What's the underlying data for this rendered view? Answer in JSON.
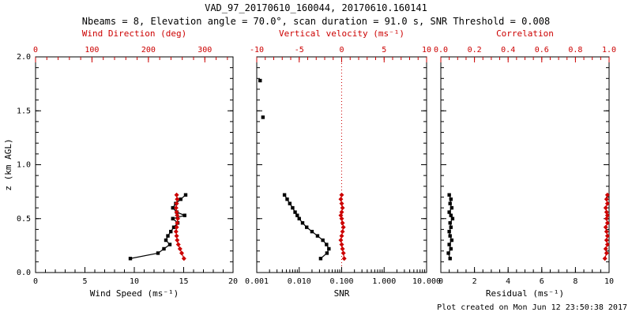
{
  "header": {
    "title": "VAD_97_20170610_160044, 20170610.160141",
    "subtitle": "Nbeams = 8, Elevation angle = 70.0°, scan duration = 91.0 s, SNR Threshold = 0.008"
  },
  "footer": {
    "created": "Plot created on Mon Jun 12 23:50:38 2017"
  },
  "colors": {
    "axis": "#000000",
    "accent": "#cc0000"
  },
  "chart_data": [
    {
      "type": "line",
      "xlabel": "Wind Speed (ms⁻¹)",
      "xlim": [
        0,
        20
      ],
      "xticks": [
        0,
        5,
        10,
        15,
        20
      ],
      "xtick_labels": [
        "0",
        "5",
        "10",
        "15",
        "20"
      ],
      "xminor": 5,
      "top_label": "Wind Direction (deg)",
      "top_lim": [
        0,
        350
      ],
      "top_ticks": [
        0,
        100,
        200,
        300
      ],
      "top_tick_labels": [
        "0",
        "100",
        "200",
        "300"
      ],
      "top_minor": 5,
      "ylabel": "z (km AGL)",
      "ylim": [
        0,
        2
      ],
      "yticks": [
        0,
        0.5,
        1,
        1.5,
        2
      ],
      "ytick_labels": [
        "0.0",
        "0.5",
        "1.0",
        "1.5",
        "2.0"
      ],
      "yminor": 5,
      "series": [
        {
          "name": "wind_speed",
          "axis": "bottom",
          "color": "#000000",
          "marker": "square",
          "line": true,
          "z": [
            0.13,
            0.18,
            0.22,
            0.26,
            0.3,
            0.34,
            0.38,
            0.42,
            0.46,
            0.5,
            0.53,
            0.56,
            0.6,
            0.64,
            0.68,
            0.72
          ],
          "v": [
            9.6,
            12.4,
            13.0,
            13.6,
            13.2,
            13.4,
            13.7,
            14.0,
            14.4,
            13.9,
            15.1,
            14.3,
            13.9,
            14.2,
            14.7,
            15.2
          ]
        },
        {
          "name": "wind_direction",
          "axis": "top",
          "color": "#cc0000",
          "marker": "diamond",
          "line": true,
          "z": [
            0.13,
            0.18,
            0.22,
            0.26,
            0.3,
            0.34,
            0.38,
            0.42,
            0.46,
            0.5,
            0.53,
            0.56,
            0.6,
            0.64,
            0.68,
            0.72
          ],
          "v": [
            263,
            259,
            256,
            253,
            251,
            250,
            249,
            250,
            251,
            252,
            251,
            250,
            249,
            250,
            251,
            250
          ]
        }
      ]
    },
    {
      "type": "line",
      "xscale": "log",
      "xlabel": "SNR",
      "xlim": [
        0.001,
        10
      ],
      "xticks": [
        0.001,
        0.01,
        0.1,
        1,
        10
      ],
      "xtick_labels": [
        "0.001",
        "0.010",
        "0.100",
        "1.000",
        "10.000"
      ],
      "top_label": "Vertical velocity (ms⁻¹)",
      "top_lim": [
        -10,
        10
      ],
      "top_ticks": [
        -10,
        -5,
        0,
        5,
        10
      ],
      "top_tick_labels": [
        "-10",
        "-5",
        "0",
        "5",
        "10"
      ],
      "top_minor": 5,
      "ylabel": null,
      "ylim": [
        0,
        2
      ],
      "yticks": [
        0,
        0.5,
        1,
        1.5,
        2
      ],
      "ytick_labels": null,
      "yminor": 5,
      "refline": {
        "axis": "top",
        "value": 0,
        "color": "#cc0000",
        "style": "dotted"
      },
      "series": [
        {
          "name": "snr",
          "axis": "bottom",
          "color": "#000000",
          "marker": "square",
          "line": true,
          "z": [
            0.13,
            0.18,
            0.22,
            0.26,
            0.3,
            0.34,
            0.38,
            0.42,
            0.46,
            0.5,
            0.53,
            0.56,
            0.6,
            0.64,
            0.68,
            0.72
          ],
          "v": [
            0.032,
            0.045,
            0.05,
            0.044,
            0.036,
            0.027,
            0.02,
            0.015,
            0.012,
            0.01,
            0.009,
            0.008,
            0.007,
            0.006,
            0.0052,
            0.0045
          ]
        },
        {
          "name": "snr_isolated",
          "axis": "bottom",
          "color": "#000000",
          "marker": "square",
          "line": false,
          "z": [
            1.44,
            1.78
          ],
          "v": [
            0.0014,
            0.0012
          ]
        },
        {
          "name": "vertical_velocity",
          "axis": "top",
          "color": "#cc0000",
          "marker": "diamond",
          "line": true,
          "z": [
            0.13,
            0.18,
            0.22,
            0.26,
            0.3,
            0.34,
            0.38,
            0.42,
            0.46,
            0.5,
            0.53,
            0.56,
            0.6,
            0.64,
            0.68,
            0.72
          ],
          "v": [
            0.3,
            0.2,
            0.1,
            0.0,
            -0.1,
            0.0,
            0.1,
            0.2,
            0.1,
            0.0,
            -0.1,
            0.0,
            0.1,
            0.0,
            -0.1,
            0.0
          ]
        }
      ]
    },
    {
      "type": "line",
      "xlabel": "Residual (ms⁻¹)",
      "xlim": [
        0,
        10
      ],
      "xticks": [
        0,
        2,
        4,
        6,
        8,
        10
      ],
      "xtick_labels": [
        "0",
        "2",
        "4",
        "6",
        "8",
        "10"
      ],
      "xminor": 4,
      "top_label": "Correlation",
      "top_lim": [
        0,
        1
      ],
      "top_ticks": [
        0,
        0.2,
        0.4,
        0.6,
        0.8,
        1.0
      ],
      "top_tick_labels": [
        "0.0",
        "0.2",
        "0.4",
        "0.6",
        "0.8",
        "1.0"
      ],
      "top_minor": 4,
      "ylabel": null,
      "ylim": [
        0,
        2
      ],
      "yticks": [
        0,
        0.5,
        1,
        1.5,
        2
      ],
      "ytick_labels": null,
      "yminor": 5,
      "series": [
        {
          "name": "residual",
          "axis": "bottom",
          "color": "#000000",
          "marker": "square",
          "line": true,
          "z": [
            0.13,
            0.18,
            0.22,
            0.26,
            0.3,
            0.34,
            0.38,
            0.42,
            0.46,
            0.5,
            0.53,
            0.56,
            0.6,
            0.64,
            0.68,
            0.72
          ],
          "v": [
            0.55,
            0.45,
            0.6,
            0.5,
            0.65,
            0.55,
            0.5,
            0.6,
            0.55,
            0.7,
            0.6,
            0.5,
            0.65,
            0.55,
            0.6,
            0.5
          ]
        },
        {
          "name": "correlation",
          "axis": "top",
          "color": "#cc0000",
          "marker": "diamond",
          "line": true,
          "z": [
            0.13,
            0.18,
            0.22,
            0.26,
            0.3,
            0.34,
            0.38,
            0.42,
            0.46,
            0.5,
            0.53,
            0.56,
            0.6,
            0.64,
            0.68,
            0.72
          ],
          "v": [
            0.975,
            0.985,
            0.98,
            0.99,
            0.985,
            0.99,
            0.985,
            0.98,
            0.99,
            0.985,
            0.99,
            0.985,
            0.98,
            0.99,
            0.985,
            0.99
          ]
        }
      ]
    }
  ]
}
